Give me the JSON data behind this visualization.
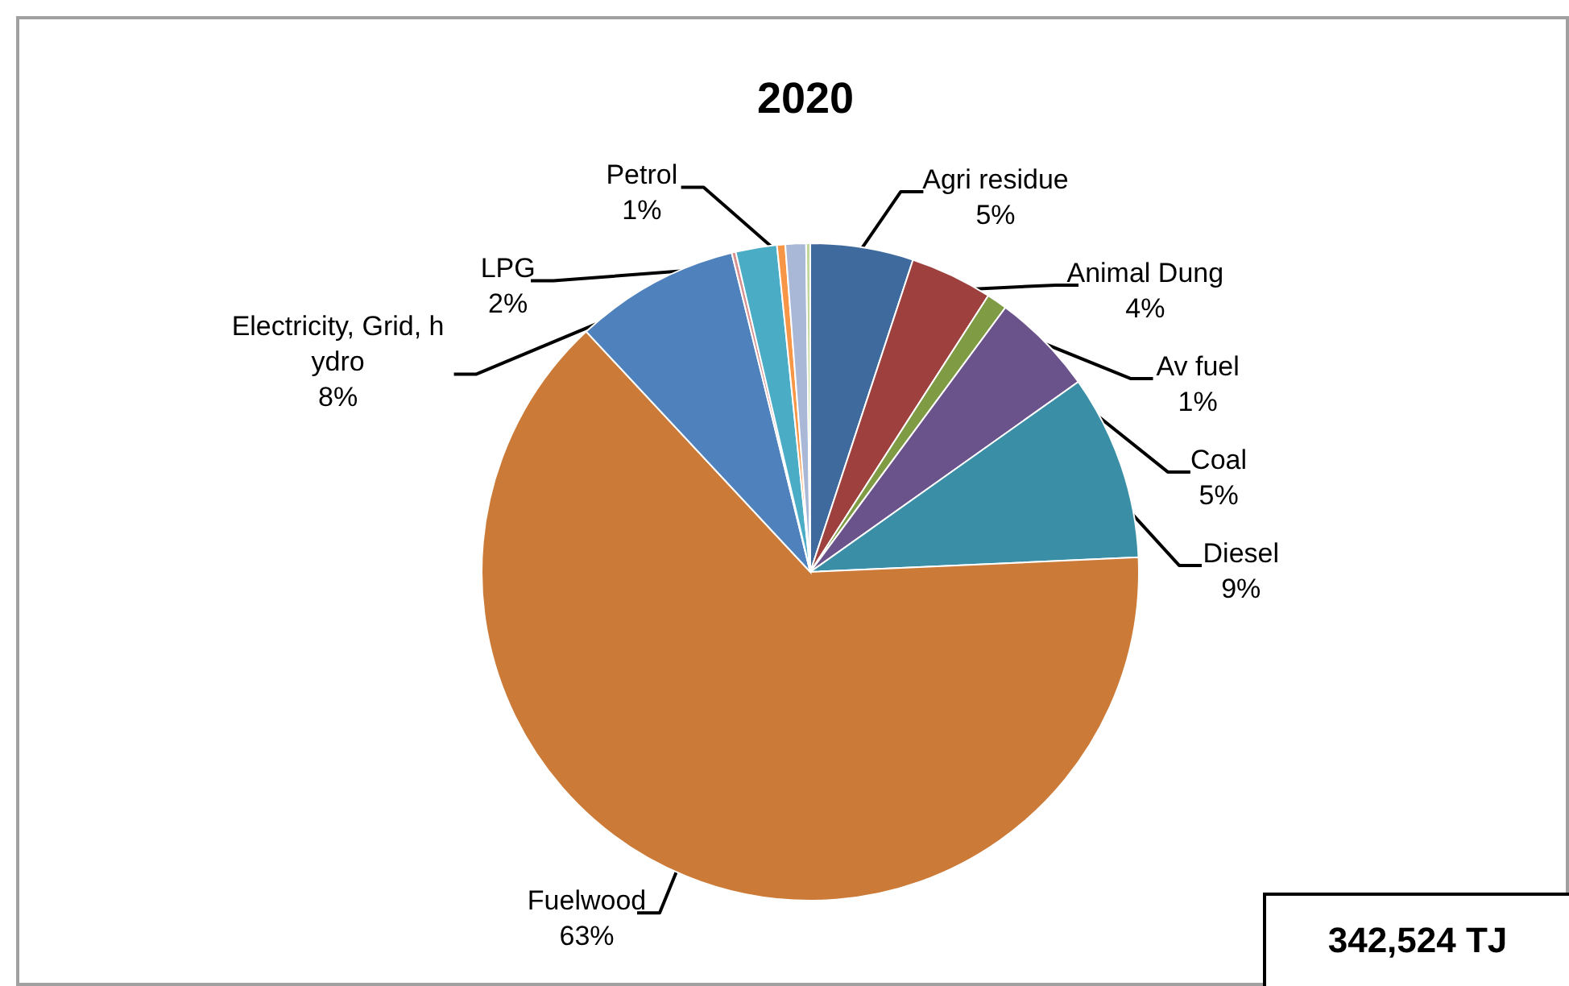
{
  "chart_data": {
    "type": "pie",
    "title": "2020",
    "categories": [
      "Agri residue",
      "Animal Dung",
      "Av fuel",
      "Coal",
      "Diesel",
      "Fuelwood",
      "Electricity, Grid, hydro",
      null,
      "LPG",
      null,
      "Petrol",
      null
    ],
    "values": [
      5,
      4,
      1,
      5,
      9,
      63,
      8,
      0.2,
      2,
      0.4,
      1,
      0.2
    ],
    "value_labels": [
      "5%",
      "4%",
      "1%",
      "5%",
      "9%",
      "63%",
      "8%",
      null,
      "2%",
      null,
      "1%",
      null
    ],
    "colors": [
      "#3f6a9e",
      "#9e413e",
      "#7f9c45",
      "#6a528a",
      "#3a8fa6",
      "#cc7a37",
      "#4f81bd",
      "#d88f8f",
      "#4bacc6",
      "#f79646",
      "#aab8d8",
      "#c3d69b"
    ],
    "annotations": [
      "342,524 TJ"
    ]
  }
}
